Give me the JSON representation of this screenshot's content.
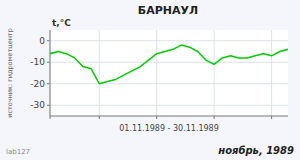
{
  "chart_data": {
    "type": "line",
    "title": "БАРНАУЛ",
    "y_label": "t,°C",
    "x_label": "01.11.1989 - 30.11.1989",
    "annotations": [
      "ноябрь, 1989",
      "источник: гидрометцентр",
      "lab127"
    ],
    "x": [
      1,
      2,
      3,
      4,
      5,
      6,
      7,
      8,
      9,
      10,
      11,
      12,
      13,
      14,
      15,
      16,
      17,
      18,
      19,
      20,
      21,
      22,
      23,
      24,
      25,
      26,
      27,
      28,
      29,
      30
    ],
    "values": [
      -6,
      -5,
      -6,
      -8,
      -12,
      -13,
      -20,
      -19,
      -18,
      -16,
      -14,
      -12,
      -9,
      -6,
      -5,
      -4,
      -2,
      -3,
      -5,
      -9,
      -11,
      -8,
      -7,
      -8,
      -8,
      -7,
      -6,
      -7,
      -5,
      -4
    ],
    "color": "#00cc00",
    "xlim": [
      1,
      30
    ],
    "xticks": [
      1,
      7,
      14,
      21,
      28
    ],
    "ylim": [
      -35,
      5
    ],
    "yticks": [
      0,
      -10,
      -20,
      -30
    ],
    "grid": true,
    "tick_labels": "y"
  }
}
